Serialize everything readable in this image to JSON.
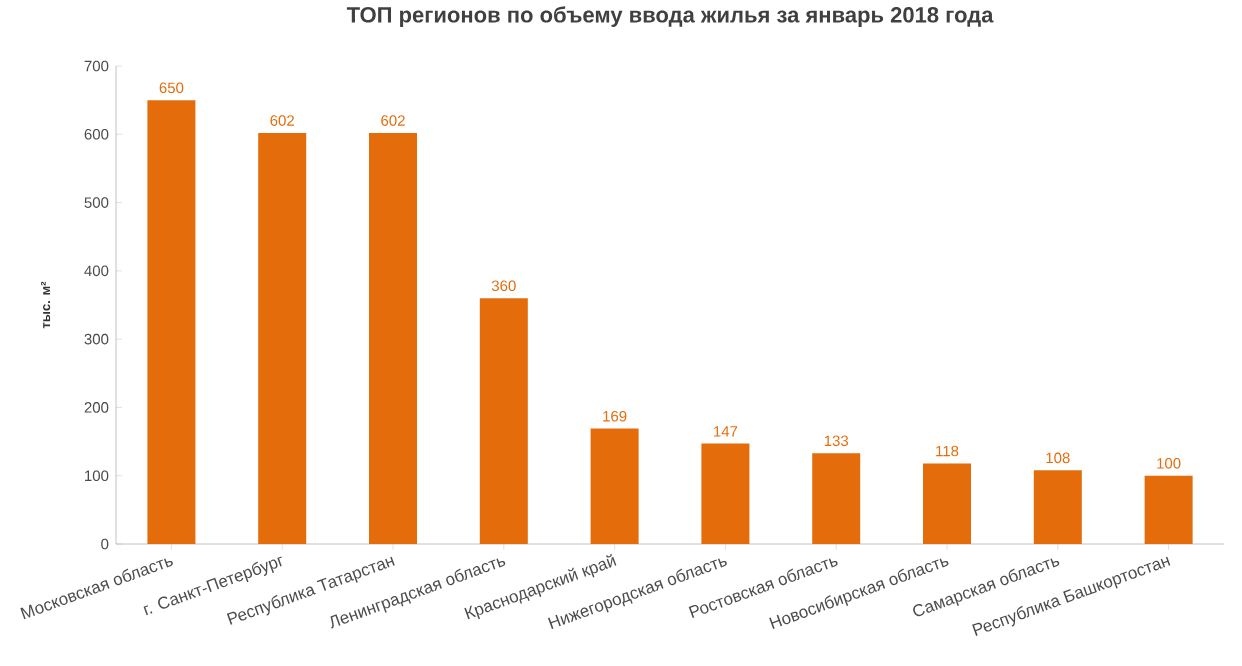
{
  "chart_data": {
    "type": "bar",
    "title": "ТОП регионов по объему ввода жилья за январь 2018 года",
    "ylabel": "тыс. м²",
    "categories": [
      "Московская область",
      "г. Санкт-Петербург",
      "Республика Татарстан",
      "Ленинградская область",
      "Краснодарский край",
      "Нижегородская область",
      "Ростовская область",
      "Новосибирская область",
      "Самарская область",
      "Республика Башкортостан"
    ],
    "values": [
      650,
      602,
      602,
      360,
      169,
      147,
      133,
      118,
      108,
      100
    ],
    "color": "#e46c0a",
    "ylim": [
      0,
      700
    ],
    "yticks": [
      0,
      100,
      200,
      300,
      400,
      500,
      600,
      700
    ],
    "data_labels": true,
    "grid": false
  }
}
